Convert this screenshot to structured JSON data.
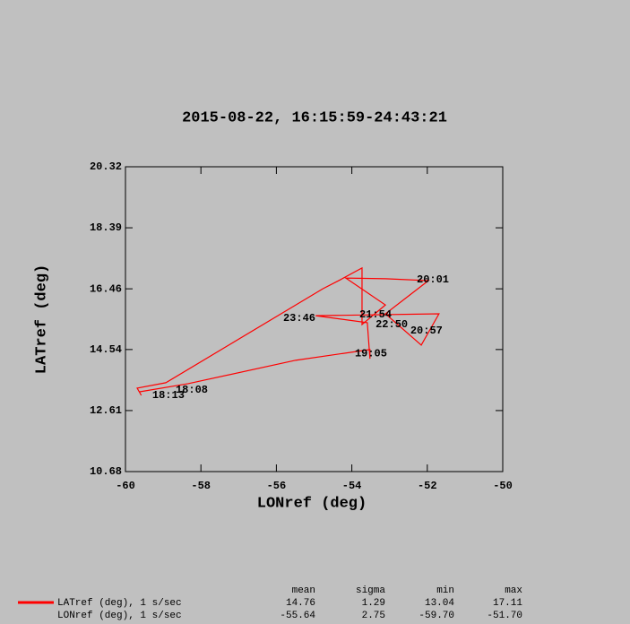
{
  "chart_data": {
    "type": "line",
    "title": "2015-08-22, 16:15:59-24:43:21",
    "xlabel": "LONref (deg)",
    "ylabel": "LATref (deg)",
    "x": [
      -59.64,
      -58.34,
      -55.49,
      -53.52,
      -53.52,
      -53.59,
      -54.96,
      -51.69,
      -52.16,
      -53.11,
      -51.97,
      -53.11,
      -54.16,
      -53.11,
      -53.73,
      -53.73,
      -54.3,
      -54.77,
      -58.93,
      -59.69,
      -59.58
    ],
    "series": [
      {
        "name": "LATref (deg), 1 s/sec",
        "color": "#ff0000",
        "values": [
          13.2,
          13.46,
          14.2,
          14.54,
          14.25,
          15.39,
          15.61,
          15.67,
          14.68,
          15.67,
          16.72,
          16.78,
          16.8,
          15.95,
          15.33,
          17.12,
          16.75,
          16.46,
          13.49,
          13.32,
          13.09
        ]
      }
    ],
    "xlim": [
      -60,
      -50
    ],
    "ylim": [
      10.68,
      20.32
    ],
    "xticks": [
      -60,
      -58,
      -56,
      -54,
      -52,
      -50
    ],
    "yticks": [
      10.68,
      12.61,
      14.54,
      16.46,
      18.39,
      20.32
    ],
    "annotations": [
      {
        "text": "18:13",
        "x": -59.29,
        "y": 13.09
      },
      {
        "text": "18:08",
        "x": -58.67,
        "y": 13.26
      },
      {
        "text": "19:05",
        "x": -53.92,
        "y": 14.42
      },
      {
        "text": "20:01",
        "x": -52.28,
        "y": 16.75
      },
      {
        "text": "20:57",
        "x": -52.45,
        "y": 15.13
      },
      {
        "text": "21:54",
        "x": -53.8,
        "y": 15.64
      },
      {
        "text": "22:50",
        "x": -53.37,
        "y": 15.33
      },
      {
        "text": "23:46",
        "x": -55.82,
        "y": 15.53
      }
    ]
  },
  "stats": {
    "header": [
      "mean",
      "sigma",
      "min",
      "max"
    ],
    "rows": [
      {
        "label": "LATref (deg), 1 s/sec",
        "cells": [
          "14.76",
          "1.29",
          "13.04",
          "17.11"
        ]
      },
      {
        "label": "LONref (deg), 1 s/sec",
        "cells": [
          "-55.64",
          "2.75",
          "-59.70",
          "-51.70"
        ]
      }
    ]
  }
}
